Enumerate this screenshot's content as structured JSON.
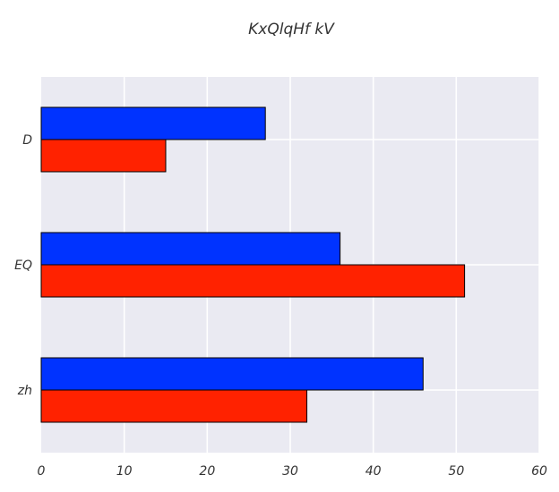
{
  "chart_data": {
    "type": "bar",
    "orientation": "horizontal",
    "title": "KxQlqHf kV",
    "xlabel": "",
    "ylabel": "",
    "categories": [
      "D",
      "EQ",
      "zh"
    ],
    "series": [
      {
        "color": "#0033ff",
        "values": [
          27,
          36,
          46
        ]
      },
      {
        "color": "#ff2200",
        "values": [
          15,
          51,
          32
        ]
      }
    ],
    "xlim": [
      0,
      60
    ],
    "xticks": [
      "0",
      "10",
      "20",
      "30",
      "40",
      "50",
      "60"
    ],
    "grid": true,
    "legend": "none",
    "background_color": "#eaeaf2",
    "grid_color": "#ffffff"
  }
}
